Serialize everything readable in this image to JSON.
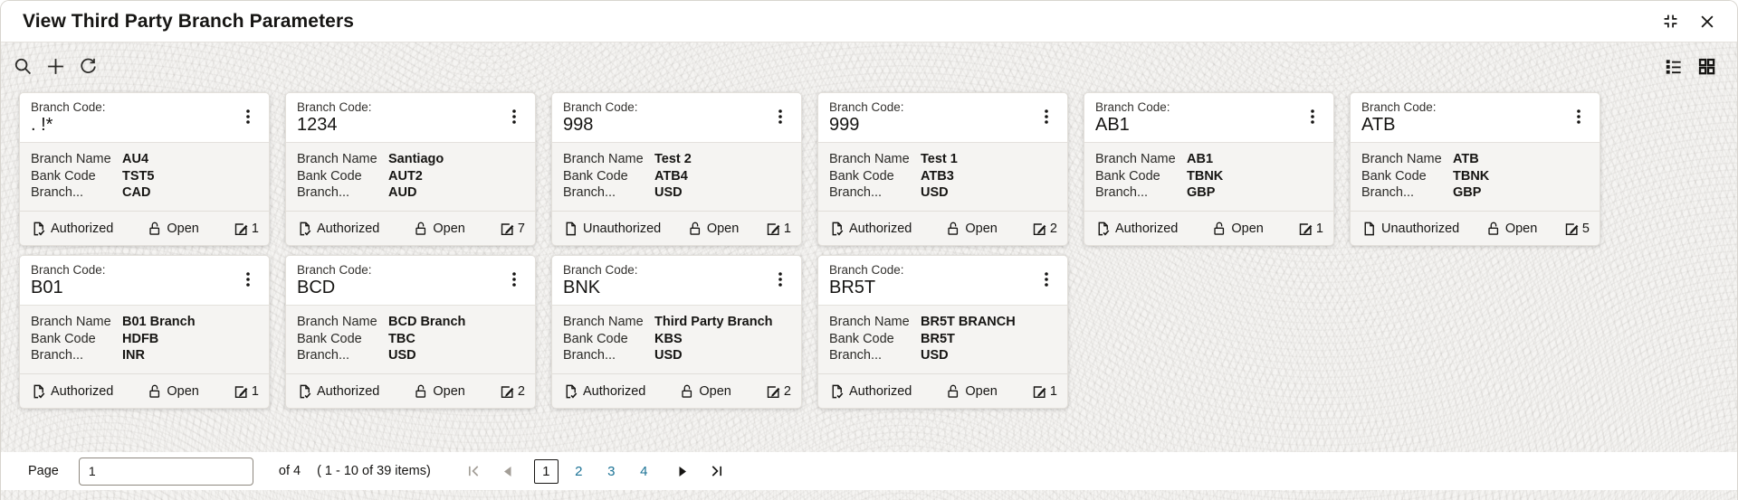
{
  "window": {
    "title": "View Third Party Branch Parameters"
  },
  "icons": {
    "resize": "corner-brackets-inward",
    "close": "x",
    "search": "magnifier",
    "add": "plus",
    "refresh": "circular-arrow",
    "list_view": "list-rows",
    "grid_view": "four-squares",
    "kebab": "vertical-ellipsis",
    "authorized": "document-check",
    "unauthorized": "document",
    "open": "open-padlock",
    "modifications": "edit-square",
    "pager_first": "bar-chevron-left",
    "pager_prev": "triangle-left",
    "pager_next": "triangle-right",
    "pager_last": "chevron-right-bar"
  },
  "colors": {
    "text": "#161513",
    "link_teal": "#1c7396",
    "disabled_gray": "#a39e97",
    "card_body_bg": "#f5f4f2"
  },
  "card_labels": {
    "code_label": "Branch Code:",
    "fields": [
      "Branch Name",
      "Bank Code",
      "Branch..."
    ]
  },
  "cards": [
    {
      "code": ". !*",
      "branch_name": "AU4",
      "bank_code": "TST5",
      "branch_ccy": "CAD",
      "auth_status": "Authorized",
      "record_status": "Open",
      "mod_count": "1"
    },
    {
      "code": "1234",
      "branch_name": "Santiago",
      "bank_code": "AUT2",
      "branch_ccy": "AUD",
      "auth_status": "Authorized",
      "record_status": "Open",
      "mod_count": "7"
    },
    {
      "code": "998",
      "branch_name": "Test 2",
      "bank_code": "ATB4",
      "branch_ccy": "USD",
      "auth_status": "Unauthorized",
      "record_status": "Open",
      "mod_count": "1"
    },
    {
      "code": "999",
      "branch_name": "Test 1",
      "bank_code": "ATB3",
      "branch_ccy": "USD",
      "auth_status": "Authorized",
      "record_status": "Open",
      "mod_count": "2"
    },
    {
      "code": "AB1",
      "branch_name": "AB1",
      "bank_code": "TBNK",
      "branch_ccy": "GBP",
      "auth_status": "Authorized",
      "record_status": "Open",
      "mod_count": "1"
    },
    {
      "code": "ATB",
      "branch_name": "ATB",
      "bank_code": "TBNK",
      "branch_ccy": "GBP",
      "auth_status": "Unauthorized",
      "record_status": "Open",
      "mod_count": "5"
    },
    {
      "code": "B01",
      "branch_name": "B01 Branch",
      "bank_code": "HDFB",
      "branch_ccy": "INR",
      "auth_status": "Authorized",
      "record_status": "Open",
      "mod_count": "1"
    },
    {
      "code": "BCD",
      "branch_name": "BCD Branch",
      "bank_code": "TBC",
      "branch_ccy": "USD",
      "auth_status": "Authorized",
      "record_status": "Open",
      "mod_count": "2"
    },
    {
      "code": "BNK",
      "branch_name": "Third Party Branch",
      "bank_code": "KBS",
      "branch_ccy": "USD",
      "auth_status": "Authorized",
      "record_status": "Open",
      "mod_count": "2"
    },
    {
      "code": "BR5T",
      "branch_name": "BR5T BRANCH",
      "bank_code": "BR5T",
      "branch_ccy": "USD",
      "auth_status": "Authorized",
      "record_status": "Open",
      "mod_count": "1"
    }
  ],
  "pagination": {
    "page_label": "Page",
    "page_input_value": "1",
    "of_text": "of 4",
    "items_text": "( 1 - 10 of 39 items)",
    "current_page": "1",
    "pages": [
      "1",
      "2",
      "3",
      "4"
    ]
  }
}
